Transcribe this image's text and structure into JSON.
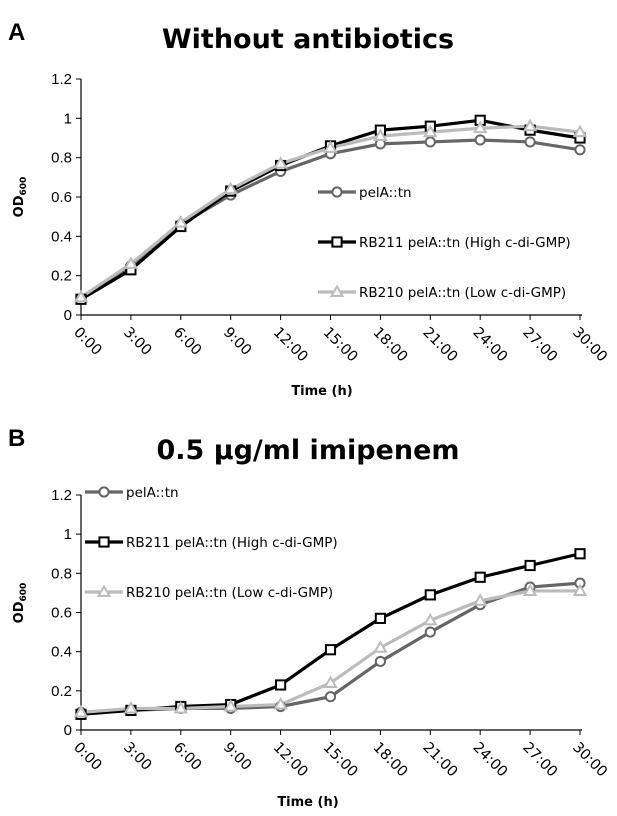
{
  "chart_data": [
    {
      "panel": "A",
      "type": "line",
      "title": "Without antibiotics",
      "xlabel": "Time (h)",
      "ylabel": "OD600",
      "categories": [
        "0:00",
        "3:00",
        "6:00",
        "9:00",
        "12:00",
        "15:00",
        "18:00",
        "21:00",
        "24:00",
        "27:00",
        "30:00"
      ],
      "ylim": [
        0,
        1.2
      ],
      "yticks": [
        "0",
        "0.2",
        "0.4",
        "0.6",
        "0.8",
        "1",
        "1.2"
      ],
      "grid": false,
      "legend_position": "right",
      "series": [
        {
          "name": "pelA::tn",
          "marker": "circle",
          "color": "#666666",
          "values": [
            0.08,
            0.25,
            0.46,
            0.61,
            0.73,
            0.82,
            0.87,
            0.88,
            0.89,
            0.88,
            0.84
          ]
        },
        {
          "name": "RB211 pelA::tn (High c-di-GMP)",
          "marker": "square",
          "color": "#000000",
          "values": [
            0.08,
            0.23,
            0.45,
            0.63,
            0.76,
            0.86,
            0.94,
            0.96,
            0.99,
            0.94,
            0.9
          ]
        },
        {
          "name": "RB210 pelA::tn (Low c-di-GMP)",
          "marker": "triangle",
          "color": "#bbbbbb",
          "values": [
            0.09,
            0.26,
            0.47,
            0.64,
            0.77,
            0.85,
            0.91,
            0.93,
            0.95,
            0.96,
            0.93
          ]
        }
      ]
    },
    {
      "panel": "B",
      "type": "line",
      "title": "0.5 µg/ml imipenem",
      "xlabel": "Time (h)",
      "ylabel": "OD600",
      "categories": [
        "0:00",
        "3:00",
        "6:00",
        "9:00",
        "12:00",
        "15:00",
        "18:00",
        "21:00",
        "24:00",
        "27:00",
        "30:00"
      ],
      "ylim": [
        0,
        1.2
      ],
      "yticks": [
        "0",
        "0.2",
        "0.4",
        "0.6",
        "0.8",
        "1",
        "1.2"
      ],
      "grid": false,
      "legend_position": "top-left",
      "series": [
        {
          "name": "pelA::tn",
          "marker": "circle",
          "color": "#666666",
          "values": [
            0.09,
            0.1,
            0.11,
            0.11,
            0.12,
            0.17,
            0.35,
            0.5,
            0.64,
            0.73,
            0.75
          ]
        },
        {
          "name": "RB211 pelA::tn (High c-di-GMP)",
          "marker": "square",
          "color": "#000000",
          "values": [
            0.08,
            0.1,
            0.12,
            0.13,
            0.23,
            0.41,
            0.57,
            0.69,
            0.78,
            0.84,
            0.9
          ]
        },
        {
          "name": "RB210 pelA::tn (Low c-di-GMP)",
          "marker": "triangle",
          "color": "#bbbbbb",
          "values": [
            0.09,
            0.11,
            0.11,
            0.12,
            0.13,
            0.24,
            0.42,
            0.56,
            0.66,
            0.71,
            0.71
          ]
        }
      ]
    }
  ]
}
